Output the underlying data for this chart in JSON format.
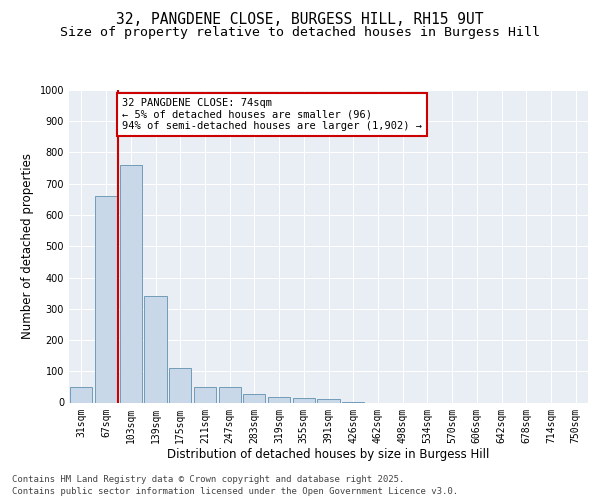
{
  "title_line1": "32, PANGDENE CLOSE, BURGESS HILL, RH15 9UT",
  "title_line2": "Size of property relative to detached houses in Burgess Hill",
  "xlabel": "Distribution of detached houses by size in Burgess Hill",
  "ylabel": "Number of detached properties",
  "categories": [
    "31sqm",
    "67sqm",
    "103sqm",
    "139sqm",
    "175sqm",
    "211sqm",
    "247sqm",
    "283sqm",
    "319sqm",
    "355sqm",
    "391sqm",
    "426sqm",
    "462sqm",
    "498sqm",
    "534sqm",
    "570sqm",
    "606sqm",
    "642sqm",
    "678sqm",
    "714sqm",
    "750sqm"
  ],
  "values": [
    50,
    660,
    760,
    340,
    110,
    50,
    50,
    27,
    17,
    13,
    10,
    2,
    0,
    0,
    0,
    0,
    0,
    0,
    0,
    0,
    0
  ],
  "bar_color": "#c8d8e8",
  "bar_edge_color": "#6090b0",
  "vline_pos": 1.5,
  "vline_color": "#cc0000",
  "annotation_text": "32 PANGDENE CLOSE: 74sqm\n← 5% of detached houses are smaller (96)\n94% of semi-detached houses are larger (1,902) →",
  "annotation_box_color": "#cc0000",
  "ylim": [
    0,
    1000
  ],
  "yticks": [
    0,
    100,
    200,
    300,
    400,
    500,
    600,
    700,
    800,
    900,
    1000
  ],
  "bg_color": "#e8eef4",
  "grid_color": "#ffffff",
  "footer_line1": "Contains HM Land Registry data © Crown copyright and database right 2025.",
  "footer_line2": "Contains public sector information licensed under the Open Government Licence v3.0.",
  "title_fontsize": 10.5,
  "subtitle_fontsize": 9.5,
  "axis_label_fontsize": 8.5,
  "ylabel_fontsize": 8.5,
  "tick_fontsize": 7,
  "annotation_fontsize": 7.5,
  "footer_fontsize": 6.5
}
